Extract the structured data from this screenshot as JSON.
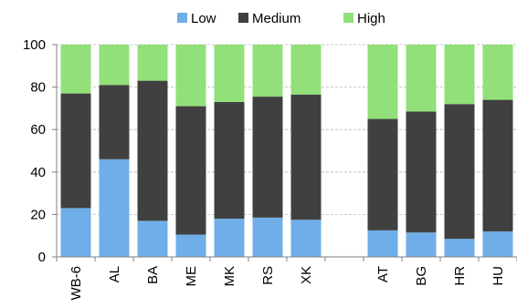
{
  "chart_data": {
    "type": "bar",
    "stacked": true,
    "percent_stacked": true,
    "categories": [
      "WB-6",
      "AL",
      "BA",
      "ME",
      "MK",
      "RS",
      "XK",
      "",
      "AT",
      "BG",
      "HR",
      "HU"
    ],
    "series": [
      {
        "name": "Low",
        "color": "#6FAEE8",
        "values": [
          23,
          46,
          17,
          10.5,
          18,
          18.5,
          17.5,
          null,
          12.5,
          11.5,
          8.5,
          12
        ]
      },
      {
        "name": "Medium",
        "color": "#404040",
        "values": [
          54,
          35,
          66,
          60.5,
          55,
          57,
          59,
          null,
          52.5,
          57,
          63.5,
          62
        ]
      },
      {
        "name": "High",
        "color": "#92E07A",
        "values": [
          23,
          19,
          17,
          29,
          27,
          24.5,
          23.5,
          null,
          35,
          31.5,
          28,
          26
        ]
      }
    ],
    "ylim": [
      0,
      100
    ],
    "yticks": [
      0,
      20,
      40,
      60,
      80,
      100
    ],
    "grid": true,
    "legend_position": "top-center",
    "title": "",
    "xlabel": "",
    "ylabel": ""
  }
}
